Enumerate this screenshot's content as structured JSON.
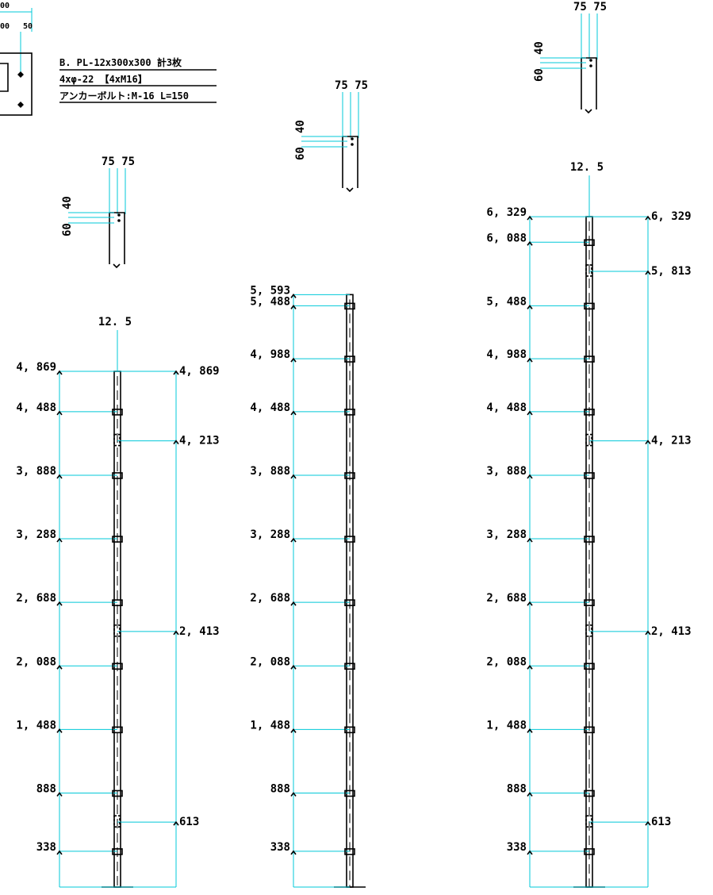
{
  "plate": {
    "dims": [
      "00",
      "00",
      "50"
    ],
    "notes": [
      "B. PL-12x300x300 計3枚",
      "4xφ-22 【4xM16】",
      "アンカーボルト:M-16 L=150"
    ]
  },
  "details": [
    {
      "top": "75 75",
      "upper": "40",
      "lower": "60"
    },
    {
      "top": "75 75",
      "upper": "40",
      "lower": "60"
    },
    {
      "top": "75 75",
      "upper": "40",
      "lower": "60"
    }
  ],
  "columns": [
    {
      "top": "12. 5",
      "left": [
        {
          "value": 4869,
          "label": "4, 869"
        },
        {
          "value": 4488,
          "label": "4, 488"
        },
        {
          "value": 3888,
          "label": "3, 888"
        },
        {
          "value": 3288,
          "label": "3, 288"
        },
        {
          "value": 2688,
          "label": "2, 688"
        },
        {
          "value": 2088,
          "label": "2, 088"
        },
        {
          "value": 1488,
          "label": "1, 488"
        },
        {
          "value": 888,
          "label": "888"
        },
        {
          "value": 338,
          "label": "338"
        }
      ],
      "right": [
        {
          "value": 4869,
          "label": "4, 869"
        },
        {
          "value": 4213,
          "label": "4, 213"
        },
        {
          "value": 2413,
          "label": "2, 413"
        },
        {
          "value": 613,
          "label": "613"
        }
      ]
    },
    {
      "left": [
        {
          "value": 5593,
          "label": "5, 593"
        },
        {
          "value": 5488,
          "label": "5, 488"
        },
        {
          "value": 4988,
          "label": "4, 988"
        },
        {
          "value": 4488,
          "label": "4, 488"
        },
        {
          "value": 3888,
          "label": "3, 888"
        },
        {
          "value": 3288,
          "label": "3, 288"
        },
        {
          "value": 2688,
          "label": "2, 688"
        },
        {
          "value": 2088,
          "label": "2, 088"
        },
        {
          "value": 1488,
          "label": "1, 488"
        },
        {
          "value": 888,
          "label": "888"
        },
        {
          "value": 338,
          "label": "338"
        }
      ]
    },
    {
      "top": "12. 5",
      "left": [
        {
          "value": 6329,
          "label": "6, 329"
        },
        {
          "value": 6088,
          "label": "6, 088"
        },
        {
          "value": 5488,
          "label": "5, 488"
        },
        {
          "value": 4988,
          "label": "4, 988"
        },
        {
          "value": 4488,
          "label": "4, 488"
        },
        {
          "value": 3888,
          "label": "3, 888"
        },
        {
          "value": 3288,
          "label": "3, 288"
        },
        {
          "value": 2688,
          "label": "2, 688"
        },
        {
          "value": 2088,
          "label": "2, 088"
        },
        {
          "value": 1488,
          "label": "1, 488"
        },
        {
          "value": 888,
          "label": "888"
        },
        {
          "value": 338,
          "label": "338"
        }
      ],
      "right": [
        {
          "value": 6329,
          "label": "6, 329"
        },
        {
          "value": 5813,
          "label": "5, 813"
        },
        {
          "value": 4213,
          "label": "4, 213"
        },
        {
          "value": 2413,
          "label": "2, 413"
        },
        {
          "value": 613,
          "label": "613"
        }
      ]
    }
  ]
}
